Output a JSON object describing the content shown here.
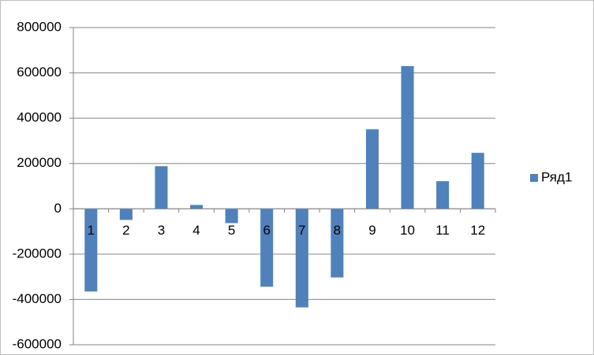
{
  "chart_data": {
    "type": "bar",
    "categories": [
      "1",
      "2",
      "3",
      "4",
      "5",
      "6",
      "7",
      "8",
      "9",
      "10",
      "11",
      "12"
    ],
    "series": [
      {
        "name": "Ряд1",
        "color": "#4f81bd",
        "values": [
          -365000,
          -49000,
          188000,
          17000,
          -63000,
          -344000,
          -435000,
          -303000,
          351000,
          630000,
          122000,
          247000
        ]
      }
    ],
    "ylim": [
      -600000,
      800000
    ],
    "yticks": [
      -600000,
      -400000,
      -200000,
      0,
      200000,
      400000,
      600000,
      800000
    ],
    "grid": true,
    "legend": "right"
  }
}
